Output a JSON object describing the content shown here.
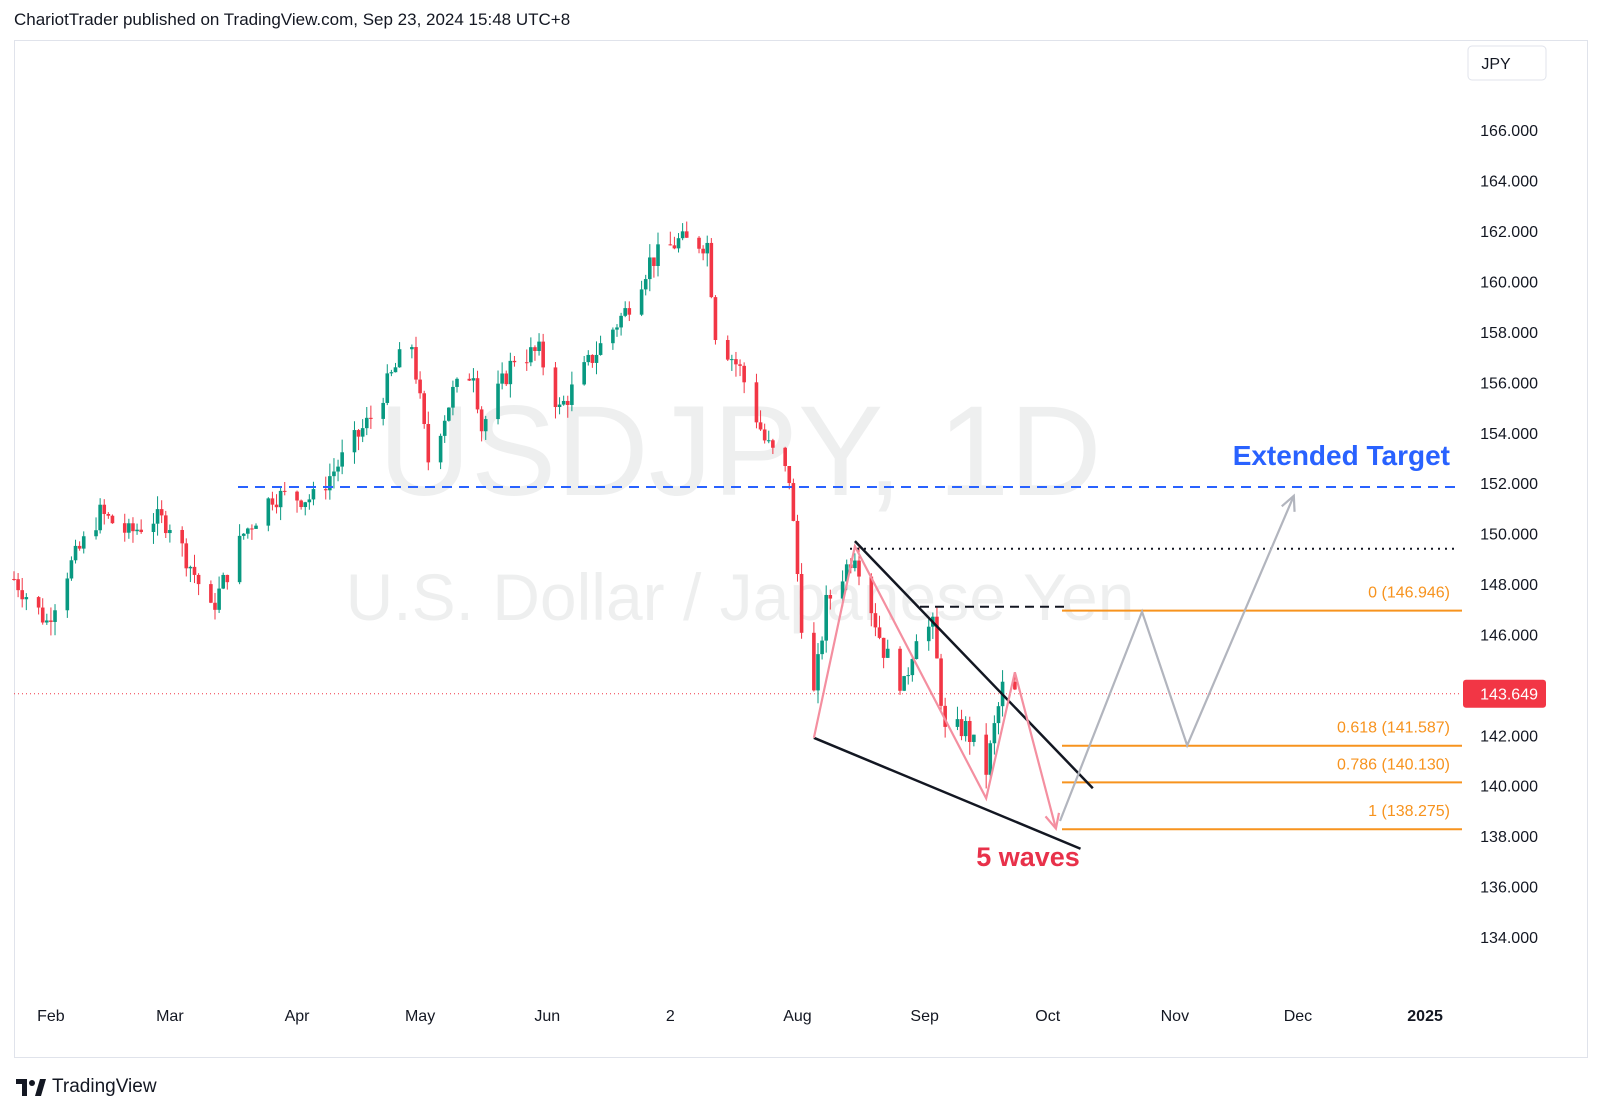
{
  "header": {
    "text": "ChariotTrader published on TradingView.com, Sep 23, 2024 15:48 UTC+8"
  },
  "footer": {
    "brand": "TradingView",
    "logo_icon": "tradingview-logo-icon"
  },
  "colors": {
    "up": "#089981",
    "down": "#f23645",
    "blue_target": "#2962ff",
    "fib": "#f7931e",
    "wave": "#f48fa0",
    "projection": "#b2b5be",
    "price_badge": "#f23645"
  },
  "chart_data": {
    "type": "candlestick",
    "symbol_watermark": "USDJPY, 1D",
    "name_watermark": "U.S. Dollar / Japanese Yen",
    "currency": "JPY",
    "last_price": "143.649",
    "ylim": [
      131.5,
      169.5
    ],
    "y_ticks": [
      "134.000",
      "136.000",
      "138.000",
      "140.000",
      "142.000",
      "144.000",
      "146.000",
      "148.000",
      "150.000",
      "152.000",
      "154.000",
      "156.000",
      "158.000",
      "160.000",
      "162.000",
      "164.000",
      "166.000"
    ],
    "x_ticks": [
      "Feb",
      "Mar",
      "Apr",
      "May",
      "Jun",
      "2",
      "Aug",
      "Sep",
      "Oct",
      "Nov",
      "Dec",
      "2025"
    ],
    "dates": {
      "start": "2024-01-23",
      "end": "2025-01-10"
    },
    "price_path": [
      [
        "2024-01-23",
        148.2
      ],
      [
        "2024-01-31",
        146.5
      ],
      [
        "2024-02-05",
        148.5
      ],
      [
        "2024-02-13",
        150.8
      ],
      [
        "2024-02-20",
        150.0
      ],
      [
        "2024-02-26",
        150.6
      ],
      [
        "2024-03-01",
        150.4
      ],
      [
        "2024-03-07",
        148.4
      ],
      [
        "2024-03-11",
        146.9
      ],
      [
        "2024-03-19",
        150.0
      ],
      [
        "2024-03-26",
        151.5
      ],
      [
        "2024-04-05",
        151.4
      ],
      [
        "2024-04-10",
        152.5
      ],
      [
        "2024-04-19",
        154.6
      ],
      [
        "2024-04-26",
        156.9
      ],
      [
        "2024-04-29",
        157.5
      ],
      [
        "2024-05-03",
        152.9
      ],
      [
        "2024-05-09",
        155.6
      ],
      [
        "2024-05-14",
        156.5
      ],
      [
        "2024-05-16",
        154.2
      ],
      [
        "2024-05-24",
        157.0
      ],
      [
        "2024-05-30",
        157.2
      ],
      [
        "2024-06-04",
        154.9
      ],
      [
        "2024-06-12",
        157.0
      ],
      [
        "2024-06-20",
        158.8
      ],
      [
        "2024-06-26",
        160.8
      ],
      [
        "2024-07-03",
        161.6
      ],
      [
        "2024-07-10",
        161.5
      ],
      [
        "2024-07-12",
        158.0
      ],
      [
        "2024-07-18",
        156.5
      ],
      [
        "2024-07-24",
        153.7
      ],
      [
        "2024-07-30",
        152.2
      ],
      [
        "2024-08-02",
        146.5
      ],
      [
        "2024-08-05",
        143.6
      ],
      [
        "2024-08-08",
        147.2
      ],
      [
        "2024-08-15",
        149.3
      ],
      [
        "2024-08-22",
        145.4
      ],
      [
        "2024-08-27",
        143.9
      ],
      [
        "2024-08-30",
        146.1
      ],
      [
        "2024-09-03",
        146.3
      ],
      [
        "2024-09-06",
        142.1
      ],
      [
        "2024-09-11",
        142.3
      ],
      [
        "2024-09-16",
        140.6
      ],
      [
        "2024-09-18",
        142.3
      ],
      [
        "2024-09-20",
        143.9
      ],
      [
        "2024-09-23",
        143.65
      ]
    ],
    "annotations": {
      "extended_target": {
        "label": "Extended Target",
        "price": 151.85
      },
      "breakout_level_dotted": 149.4,
      "resistance_dashed": 147.1,
      "fib_levels": [
        {
          "label": "0 (146.946)",
          "price": 146.946
        },
        {
          "label": "0.618 (141.587)",
          "price": 141.587
        },
        {
          "label": "0.786 (140.130)",
          "price": 140.13
        },
        {
          "label": "1 (138.275)",
          "price": 138.275
        }
      ],
      "wedge_upper": [
        [
          "2024-08-15",
          149.7
        ],
        [
          "2024-10-12",
          139.9
        ]
      ],
      "wedge_lower": [
        [
          "2024-08-05",
          141.9
        ],
        [
          "2024-10-09",
          137.5
        ]
      ],
      "waves_label": "5 waves",
      "waves_path": [
        [
          "2024-08-05",
          141.9
        ],
        [
          "2024-08-15",
          149.5
        ],
        [
          "2024-09-16",
          139.5
        ],
        [
          "2024-09-23",
          144.5
        ],
        [
          "2024-10-03",
          138.3
        ]
      ],
      "projection_path": [
        [
          "2024-10-04",
          138.6
        ],
        [
          "2024-10-24",
          146.9
        ],
        [
          "2024-11-04",
          141.6
        ],
        [
          "2024-11-30",
          151.5
        ]
      ]
    }
  }
}
